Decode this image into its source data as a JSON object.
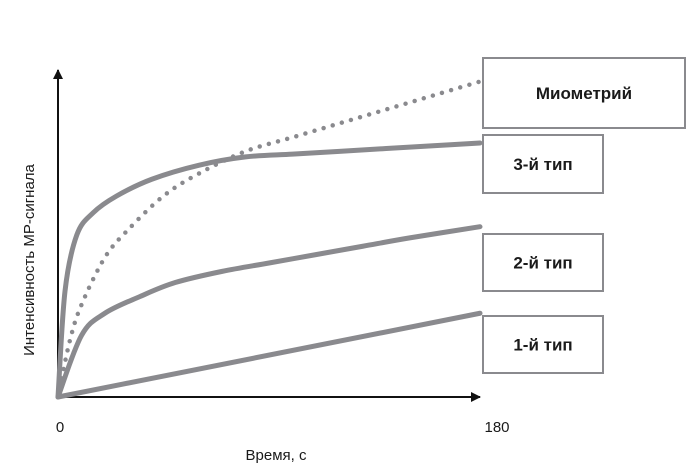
{
  "chart_data": {
    "type": "line",
    "title": "",
    "xlabel": "Время, с",
    "ylabel": "Интенсивность МР-сигнала",
    "xlim": [
      0,
      180
    ],
    "ylim": [
      0,
      1.2
    ],
    "x_ticks": [
      "0",
      "180"
    ],
    "colors": {
      "series": "#8a8a8e",
      "axis": "#111111",
      "text": "#1a1a1a"
    },
    "series": [
      {
        "name": "Миометрий",
        "style": "dotted",
        "x": [
          0,
          5,
          10,
          20,
          30,
          45,
          60,
          80,
          100,
          120,
          140,
          160,
          180
        ],
        "y": [
          0,
          0.2,
          0.33,
          0.5,
          0.6,
          0.72,
          0.8,
          0.88,
          0.93,
          0.98,
          1.03,
          1.08,
          1.13
        ]
      },
      {
        "name": "3-й тип",
        "style": "solid",
        "x": [
          0,
          3,
          8,
          15,
          25,
          40,
          60,
          80,
          100,
          120,
          140,
          160,
          180
        ],
        "y": [
          0,
          0.38,
          0.58,
          0.66,
          0.72,
          0.78,
          0.83,
          0.86,
          0.87,
          0.88,
          0.89,
          0.9,
          0.91
        ]
      },
      {
        "name": "2-й тип",
        "style": "solid",
        "x": [
          0,
          10,
          20,
          35,
          50,
          70,
          90,
          110,
          130,
          150,
          180
        ],
        "y": [
          0,
          0.22,
          0.3,
          0.36,
          0.41,
          0.45,
          0.48,
          0.51,
          0.54,
          0.57,
          0.61
        ]
      },
      {
        "name": "1-й тип",
        "style": "solid",
        "x": [
          0,
          180
        ],
        "y": [
          0,
          0.3
        ]
      }
    ]
  }
}
